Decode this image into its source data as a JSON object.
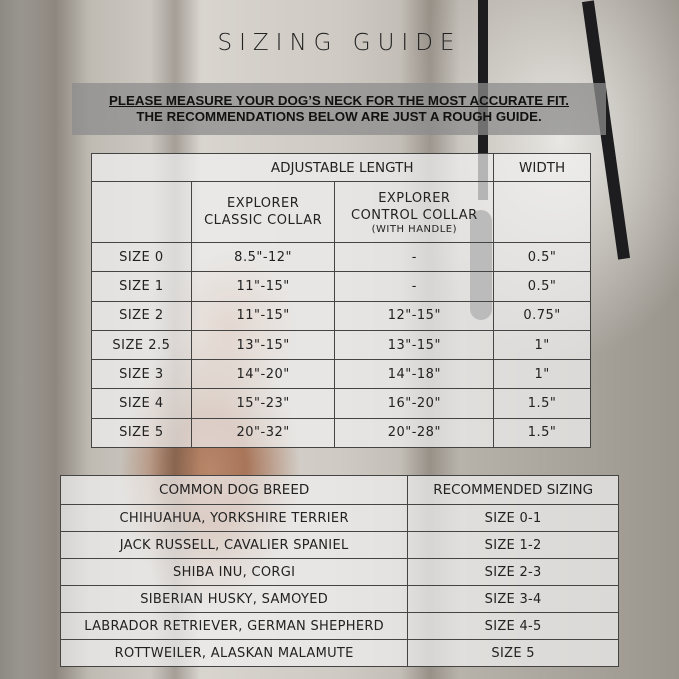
{
  "title": "SIZING GUIDE",
  "notice": {
    "line1": "PLEASE MEASURE YOUR DOG’S NECK FOR THE MOST ACCURATE FIT.",
    "line2": "THE RECOMMENDATIONS BELOW ARE JUST A ROUGH GUIDE."
  },
  "size_table": {
    "group_headers": {
      "length": "ADJUSTABLE LENGTH",
      "width": "WIDTH"
    },
    "columns": {
      "classic_l1": "EXPLORER",
      "classic_l2": "CLASSIC COLLAR",
      "control_l1": "EXPLORER",
      "control_l2": "CONTROL COLLAR",
      "control_note": "(WITH HANDLE)"
    },
    "rows": [
      {
        "size": "SIZE 0",
        "classic": "8.5\"-12\"",
        "control": "-",
        "width": "0.5\""
      },
      {
        "size": "SIZE 1",
        "classic": "11\"-15\"",
        "control": "-",
        "width": "0.5\""
      },
      {
        "size": "SIZE 2",
        "classic": "11\"-15\"",
        "control": "12\"-15\"",
        "width": "0.75\""
      },
      {
        "size": "SIZE 2.5",
        "classic": "13\"-15\"",
        "control": "13\"-15\"",
        "width": "1\""
      },
      {
        "size": "SIZE 3",
        "classic": "14\"-20\"",
        "control": "14\"-18\"",
        "width": "1\""
      },
      {
        "size": "SIZE 4",
        "classic": "15\"-23\"",
        "control": "16\"-20\"",
        "width": "1.5\""
      },
      {
        "size": "SIZE 5",
        "classic": "20\"-32\"",
        "control": "20\"-28\"",
        "width": "1.5\""
      }
    ]
  },
  "breed_table": {
    "headers": {
      "breed": "COMMON DOG BREED",
      "sizing": "RECOMMENDED SIZING"
    },
    "rows": [
      {
        "breed": "CHIHUAHUA, YORKSHIRE TERRIER",
        "sizing": "SIZE 0-1"
      },
      {
        "breed": "JACK RUSSELL, CAVALIER SPANIEL",
        "sizing": "SIZE 1-2"
      },
      {
        "breed": "SHIBA INU, CORGI",
        "sizing": "SIZE 2-3"
      },
      {
        "breed": "SIBERIAN HUSKY, SAMOYED",
        "sizing": "SIZE 3-4"
      },
      {
        "breed": "LABRADOR RETRIEVER, GERMAN SHEPHERD",
        "sizing": "SIZE 4-5"
      },
      {
        "breed": "ROTTWEILER, ALASKAN MALAMUTE",
        "sizing": "SIZE 5"
      }
    ]
  }
}
